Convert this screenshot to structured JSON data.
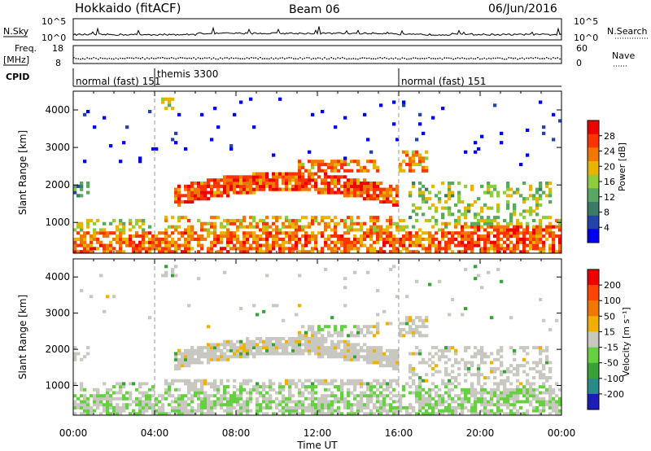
{
  "header": {
    "station": "Hokkaido (fitACF)",
    "beam": "Beam 06",
    "date": "06/Jun/2016"
  },
  "top_panels": {
    "nsky_label": "N.Sky",
    "nsky_ticks": [
      "10^5",
      "10^0"
    ],
    "nsearch_label": "N.Search",
    "nsearch_ticks": [
      "10^5",
      "10^0"
    ],
    "freq_label_1": "Freq.",
    "freq_label_2": "[MHz]",
    "freq_ticks": [
      "18",
      "8"
    ],
    "nave_label": "Nave",
    "nave_ticks": [
      "60",
      "0"
    ],
    "cpid_label": "CPID",
    "cpid_segments": [
      {
        "label": "normal (fast) 151",
        "start_h": 0
      },
      {
        "label": "themis 3300",
        "start_h": 4
      },
      {
        "label": "normal (fast) 151",
        "start_h": 16
      }
    ]
  },
  "chart_data": [
    {
      "type": "heatmap",
      "name": "power",
      "xlabel": "",
      "ylabel": "Slant Range [km]",
      "xlim": [
        0,
        24
      ],
      "ylim": [
        180,
        4500
      ],
      "yticks": [
        1000,
        2000,
        3000,
        4000
      ],
      "colorbar": {
        "label": "Power [dB]",
        "ticks": [
          "28",
          "24",
          "20",
          "16",
          "12",
          "8",
          "4"
        ],
        "range": [
          0,
          32
        ]
      }
    },
    {
      "type": "heatmap",
      "name": "velocity",
      "xlabel": "Time UT",
      "ylabel": "Slant Range [km]",
      "xlim": [
        0,
        24
      ],
      "ylim": [
        180,
        4500
      ],
      "xticks": [
        "00:00",
        "04:00",
        "08:00",
        "12:00",
        "16:00",
        "20:00",
        "00:00"
      ],
      "yticks": [
        1000,
        2000,
        3000,
        4000
      ],
      "colorbar": {
        "label": "Velocity [m s⁻¹]",
        "ticks": [
          "200",
          "100",
          "50",
          "15",
          "-15",
          "-50",
          "-100",
          "-200"
        ]
      }
    }
  ],
  "colors": {
    "power_scale": [
      "#0000ee",
      "#2244aa",
      "#3a7a66",
      "#5aa860",
      "#8fcc3a",
      "#e8b400",
      "#f07800",
      "#ff3300",
      "#ee0000"
    ],
    "velocity_scale": [
      "#1c1cb8",
      "#2a8a8a",
      "#3aa03a",
      "#66d040",
      "#c8c8c0",
      "#f0b000",
      "#f07800",
      "#ff4400",
      "#ee0000"
    ]
  }
}
